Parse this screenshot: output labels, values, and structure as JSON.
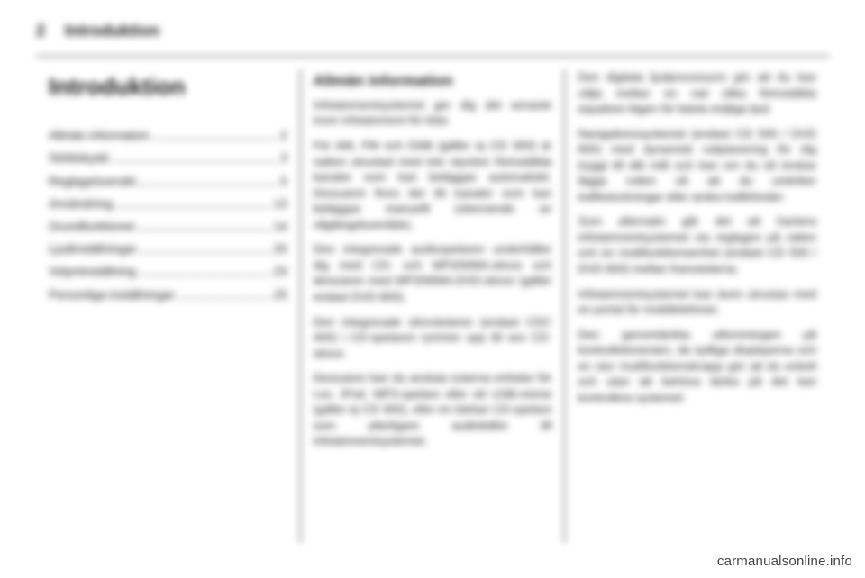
{
  "header": {
    "page_number": "2",
    "section_title": "Introduktion"
  },
  "col1": {
    "chapter_title": "Introduktion",
    "toc": [
      {
        "label": "Allmän information",
        "page": "2"
      },
      {
        "label": "Stöldskydd",
        "page": "3"
      },
      {
        "label": "Reglageöversikt",
        "page": "5"
      },
      {
        "label": "Användning",
        "page": "13"
      },
      {
        "label": "Grundfunktioner",
        "page": "14"
      },
      {
        "label": "Ljudinställningar",
        "page": "20"
      },
      {
        "label": "Volyminställning",
        "page": "23"
      },
      {
        "label": "Personliga inställningar",
        "page": "25"
      }
    ]
  },
  "col2": {
    "heading": "Allmän information",
    "paragraphs": [
      "Infotainmentsystemet ger dig det senaste inom infotainment för bilar.",
      "För AM, FM och DAB (gäller ej CD 300) är radion utrustad med tolv stycken förinställda kanaler som kan beläggas automatiskt. Dessutom finns det 36 kanaler som kan beläggas manuellt (oberoende av våglängdsområde).",
      "Den integrerade audiospelaren underhåller dig med CD- och MP3/WMA-skivor och dessutom med MP3/WMA-DVD-skivor (gäller endast DVD 800).",
      "Den integrerade skivväxlaren (endast CDC 400) i CD-spelaren rymmer upp till sex CD-skivor.",
      "Dessutom kan du ansluta externa enheter för t.ex. iPod, MP3-spelare eller ett USB-minne (gäller ej CD 300), eller en bärbar CD-spelare som ytterligare audiokällor till infotainmentsystemet."
    ]
  },
  "col3": {
    "paragraphs": [
      "Den digitala ljudprocessorn gör att du kan välja mellan en rad olika förinställda equalizer-lägen för bästa möjliga ljud.",
      "Navigationssystemet (endast CD 500 / DVD 800) med dynamisk ruttplanering för dig tryggt till ditt mål och kan om du så önskar lägga rutten så att du undviker trafikstockningar eller andra trafikhinder.",
      "Som alternativ går det att hantera infotainmentsystemet via reglagen på ratten och en multifunktionsenhet (endast CD 500 / DVD 800) mellan framstolarna.",
      "Infotainmentsystemet kan även utrustas med en portal för mobiltelefoner.",
      "Den genomtänkta utformningen på kontrollelementen, de tydliga displayerna och en stor multifunktionsknapp gör att du enkelt och utan att behöva tänka på det kan kontrollera systemet."
    ]
  },
  "watermark": "carmanualsonline.info"
}
